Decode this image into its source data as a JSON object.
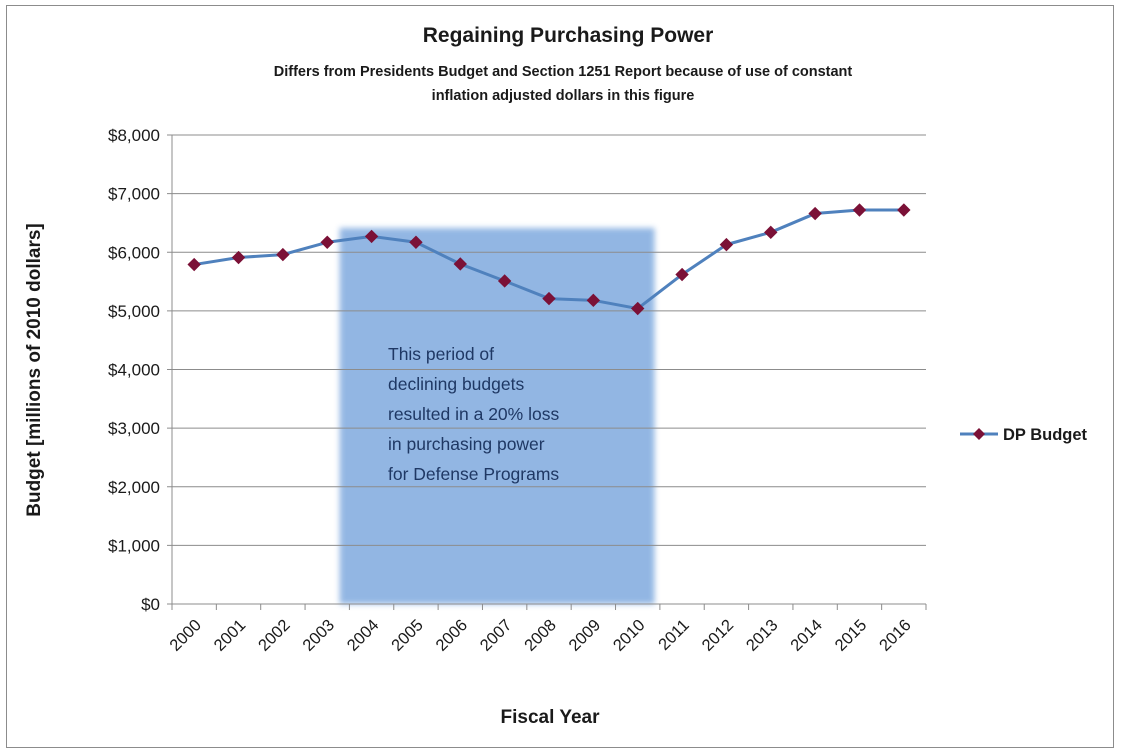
{
  "chart_data": {
    "type": "line",
    "title": "Regaining Purchasing Power",
    "subtitle": "Differs from Presidents Budget and Section 1251 Report because of use of constant inflation adjusted dollars in this figure",
    "xlabel": "Fiscal Year",
    "ylabel": "Budget [millions of 2010 dollars]",
    "ylim": [
      0,
      8000
    ],
    "yticks": [
      0,
      1000,
      2000,
      3000,
      4000,
      5000,
      6000,
      7000,
      8000
    ],
    "ytick_labels": [
      "$0",
      "$1,000",
      "$2,000",
      "$3,000",
      "$4,000",
      "$5,000",
      "$6,000",
      "$7,000",
      "$8,000"
    ],
    "categories": [
      "2000",
      "2001",
      "2002",
      "2003",
      "2004",
      "2005",
      "2006",
      "2007",
      "2008",
      "2009",
      "2010",
      "2011",
      "2012",
      "2013",
      "2014",
      "2015",
      "2016"
    ],
    "series": [
      {
        "name": "DP Budget",
        "color": "#4f81bd",
        "marker_color": "#7b1137",
        "values": [
          5790,
          5910,
          5960,
          6170,
          6270,
          6170,
          5800,
          5510,
          5210,
          5180,
          5040,
          5620,
          6130,
          6340,
          6660,
          6720,
          6720
        ]
      }
    ],
    "highlight": {
      "from": "2004",
      "to": "2010",
      "color": "#8db3e2",
      "text": [
        "This period of",
        "declining budgets",
        "resulted in a 20% loss",
        "in purchasing  power",
        "for Defense Programs"
      ]
    },
    "grid": true,
    "legend_position": "right"
  }
}
